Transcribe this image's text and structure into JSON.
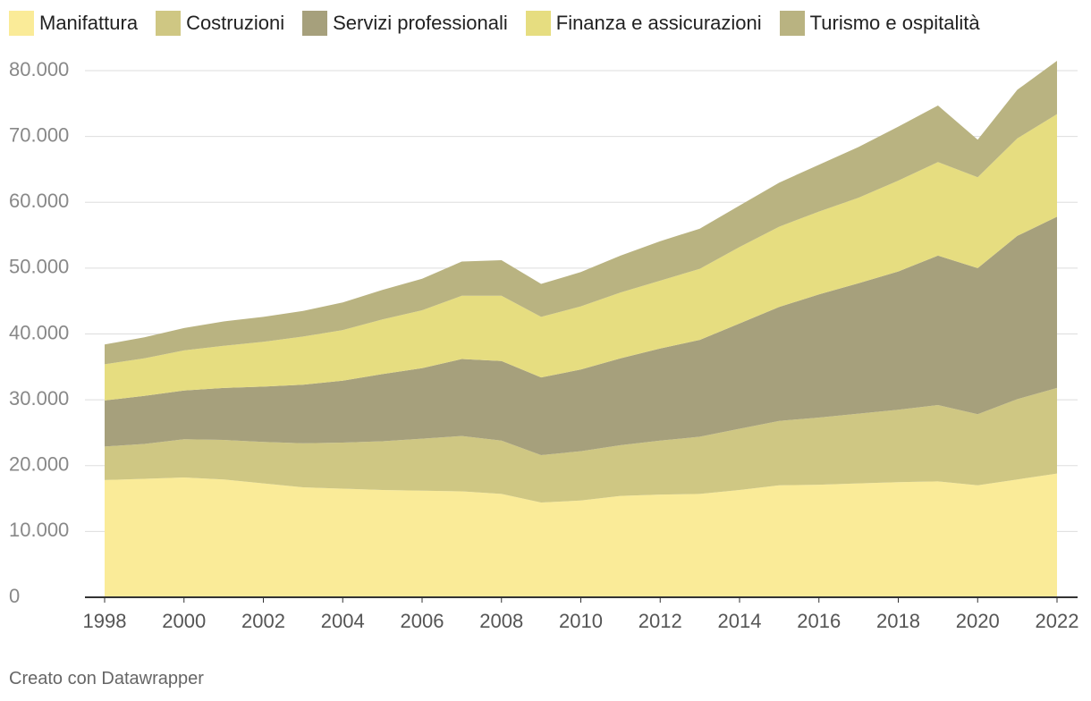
{
  "chart_data": {
    "type": "area",
    "stacked": true,
    "title": "",
    "xlabel": "",
    "ylabel": "",
    "x": [
      1998,
      1999,
      2000,
      2001,
      2002,
      2003,
      2004,
      2005,
      2006,
      2007,
      2008,
      2009,
      2010,
      2011,
      2012,
      2013,
      2014,
      2015,
      2016,
      2017,
      2018,
      2019,
      2020,
      2021,
      2022
    ],
    "xticks": [
      "1998",
      "2000",
      "2002",
      "2004",
      "2006",
      "2008",
      "2010",
      "2012",
      "2014",
      "2016",
      "2018",
      "2020",
      "2022"
    ],
    "yticks": [
      0,
      10000,
      20000,
      30000,
      40000,
      50000,
      60000,
      70000,
      80000
    ],
    "ytick_labels": [
      "0",
      "10.000",
      "20.000",
      "30.000",
      "40.000",
      "50.000",
      "60.000",
      "70.000",
      "80.000"
    ],
    "ylim": [
      0,
      82000
    ],
    "grid": true,
    "legend_position": "top-left",
    "series": [
      {
        "name": "Manifattura",
        "color": "#faeb98",
        "values": [
          17800,
          18000,
          18200,
          17900,
          17300,
          16700,
          16500,
          16300,
          16200,
          16100,
          15700,
          14400,
          14700,
          15400,
          15600,
          15700,
          16300,
          17000,
          17100,
          17300,
          17500,
          17600,
          17000,
          17900,
          18800
        ]
      },
      {
        "name": "Costruzioni",
        "color": "#cfc783",
        "values": [
          5100,
          5300,
          5800,
          6000,
          6300,
          6700,
          7000,
          7400,
          7900,
          8400,
          8100,
          7200,
          7500,
          7700,
          8200,
          8700,
          9300,
          9800,
          10200,
          10600,
          11000,
          11600,
          10800,
          12200,
          13000
        ]
      },
      {
        "name": "Servizi professionali",
        "color": "#a6a07c",
        "values": [
          7000,
          7300,
          7400,
          7900,
          8400,
          8900,
          9400,
          10200,
          10700,
          11700,
          12100,
          11800,
          12400,
          13200,
          14000,
          14700,
          16000,
          17300,
          18700,
          19800,
          21000,
          22700,
          22200,
          24800,
          26000
        ]
      },
      {
        "name": "Finanza e assicurazioni",
        "color": "#e6dd80",
        "values": [
          5500,
          5700,
          6100,
          6400,
          6800,
          7300,
          7700,
          8300,
          8800,
          9600,
          9900,
          9200,
          9600,
          10000,
          10300,
          10800,
          11600,
          12200,
          12600,
          13000,
          13800,
          14200,
          13800,
          14800,
          15600
        ]
      },
      {
        "name": "Turismo e ospitalità",
        "color": "#b9b381",
        "values": [
          3000,
          3200,
          3400,
          3700,
          3800,
          3900,
          4200,
          4500,
          4800,
          5200,
          5400,
          5000,
          5200,
          5600,
          6000,
          6100,
          6300,
          6700,
          7100,
          7700,
          8200,
          8600,
          5700,
          7400,
          8100
        ]
      }
    ]
  },
  "footer": {
    "credit": "Creato con Datawrapper"
  }
}
